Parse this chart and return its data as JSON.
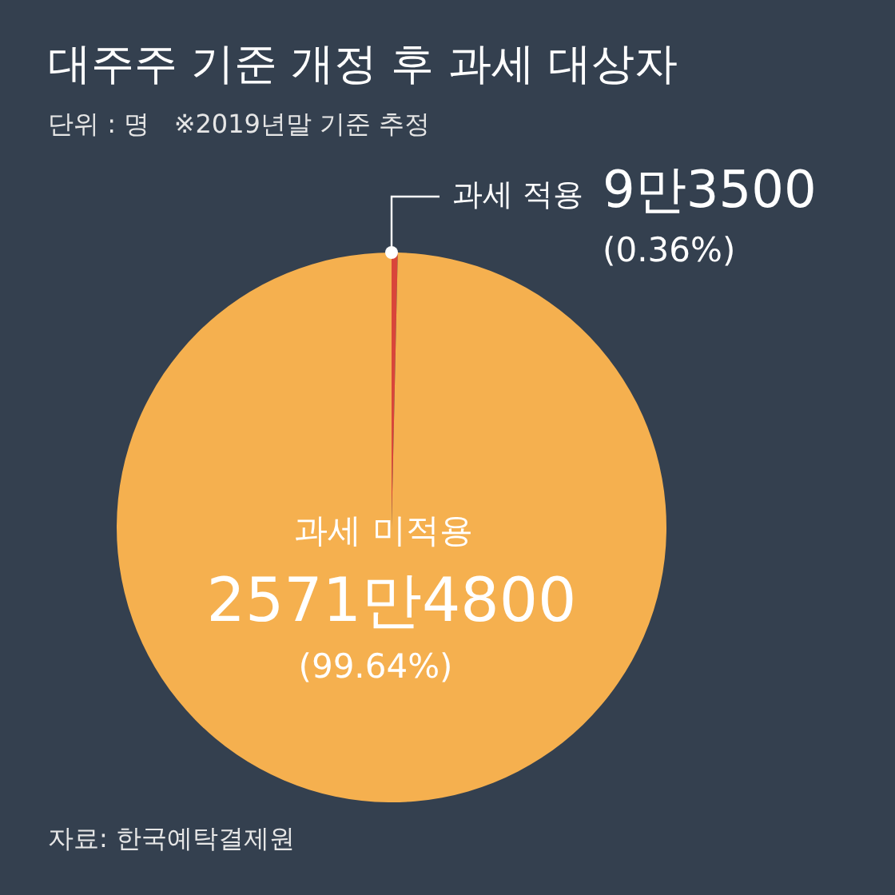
{
  "chart_data": {
    "type": "pie",
    "title": "대주주 기준 개정 후 과세 대상자",
    "subtitle": "단위 : 명   ※2019년말 기준 추정",
    "categories": [
      "과세 적용",
      "과세 미적용"
    ],
    "values": [
      0.36,
      99.64
    ],
    "colors": [
      "#d9453a",
      "#f5b04f"
    ],
    "value_labels": [
      "(0.36%)",
      "(99.64%)"
    ],
    "annotations": [
      {
        "text": "9만3500",
        "x": "과세 적용"
      },
      {
        "text": "2571만4800",
        "x": "과세 미적용"
      },
      "자료: 한국예탁결제원"
    ],
    "legend": false
  }
}
